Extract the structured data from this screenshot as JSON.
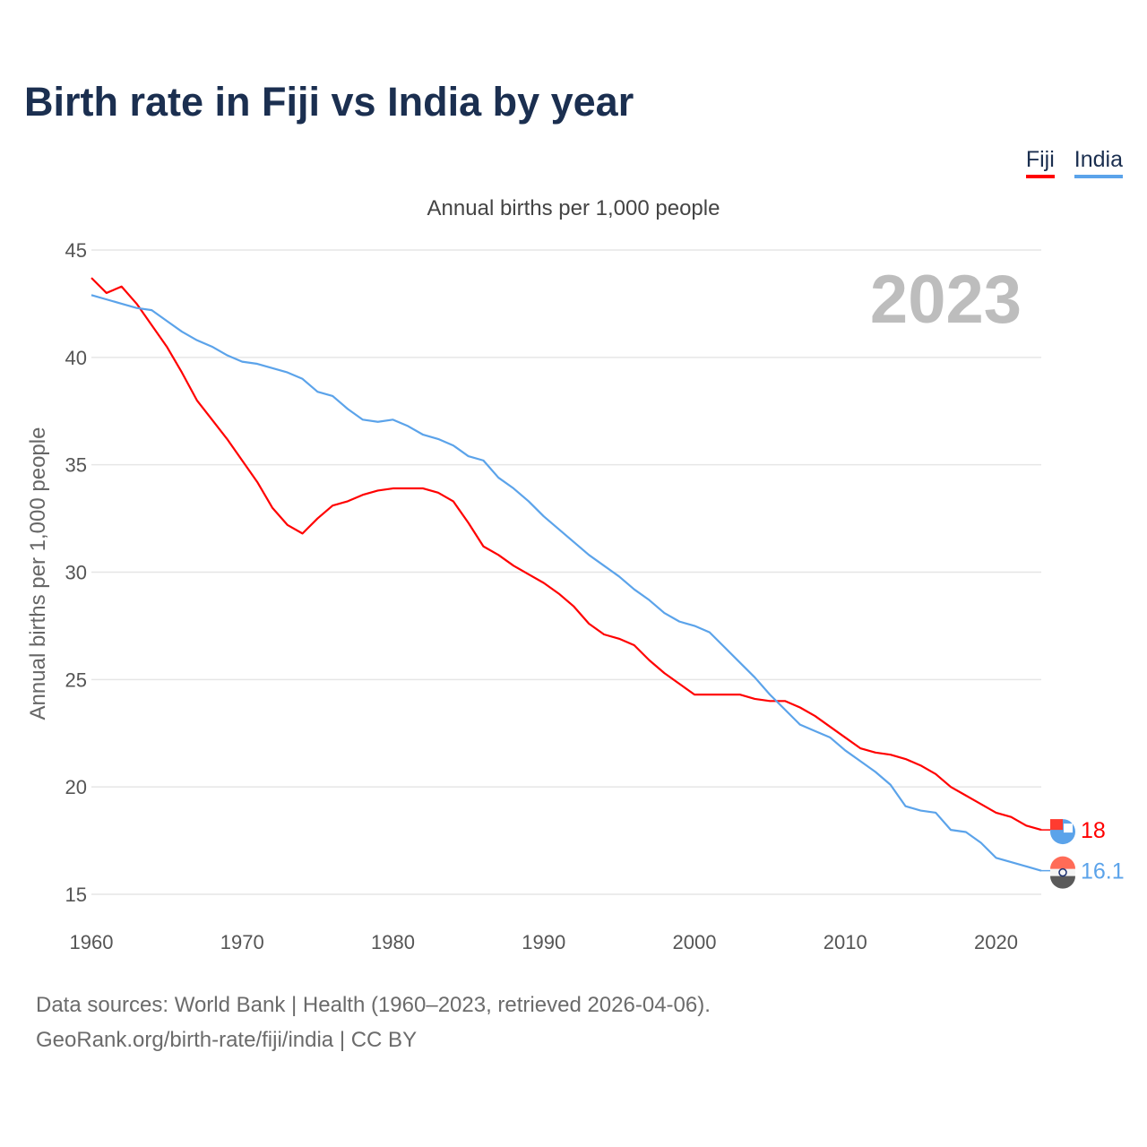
{
  "chart_data": {
    "type": "line",
    "title": "Birth rate in Fiji vs India by year",
    "subtitle": "Annual births per 1,000 people",
    "ylabel": "Annual births per 1,000 people",
    "xlabel": "",
    "year_label": "2023",
    "xlim": [
      1960,
      2023
    ],
    "ylim": [
      15,
      45
    ],
    "xticks": [
      1960,
      1970,
      1980,
      1990,
      2000,
      2010,
      2020
    ],
    "yticks": [
      15,
      20,
      25,
      30,
      35,
      40,
      45
    ],
    "grid": true,
    "legend_position": "top-right",
    "x": [
      1960,
      1961,
      1962,
      1963,
      1964,
      1965,
      1966,
      1967,
      1968,
      1969,
      1970,
      1971,
      1972,
      1973,
      1974,
      1975,
      1976,
      1977,
      1978,
      1979,
      1980,
      1981,
      1982,
      1983,
      1984,
      1985,
      1986,
      1987,
      1988,
      1989,
      1990,
      1991,
      1992,
      1993,
      1994,
      1995,
      1996,
      1997,
      1998,
      1999,
      2000,
      2001,
      2002,
      2003,
      2004,
      2005,
      2006,
      2007,
      2008,
      2009,
      2010,
      2011,
      2012,
      2013,
      2014,
      2015,
      2016,
      2017,
      2018,
      2019,
      2020,
      2021,
      2022,
      2023
    ],
    "series": [
      {
        "name": "Fiji",
        "color": "#ff0000",
        "end_label": "18",
        "values": [
          43.7,
          43.0,
          43.3,
          42.5,
          41.5,
          40.5,
          39.3,
          38.0,
          37.1,
          36.2,
          35.2,
          34.2,
          33.0,
          32.2,
          31.8,
          32.5,
          33.1,
          33.3,
          33.6,
          33.8,
          33.9,
          33.9,
          33.9,
          33.7,
          33.3,
          32.3,
          31.2,
          30.8,
          30.3,
          29.9,
          29.5,
          29.0,
          28.4,
          27.6,
          27.1,
          26.9,
          26.6,
          25.9,
          25.3,
          24.8,
          24.3,
          24.3,
          24.3,
          24.3,
          24.1,
          24.0,
          24.0,
          23.7,
          23.3,
          22.8,
          22.3,
          21.8,
          21.6,
          21.5,
          21.3,
          21.0,
          20.6,
          20.0,
          19.6,
          19.2,
          18.8,
          18.6,
          18.2,
          18.0
        ]
      },
      {
        "name": "India",
        "color": "#5ba3ea",
        "end_label": "16.1",
        "values": [
          42.9,
          42.7,
          42.5,
          42.3,
          42.2,
          41.7,
          41.2,
          40.8,
          40.5,
          40.1,
          39.8,
          39.7,
          39.5,
          39.3,
          39.0,
          38.4,
          38.2,
          37.6,
          37.1,
          37.0,
          37.1,
          36.8,
          36.4,
          36.2,
          35.9,
          35.4,
          35.2,
          34.4,
          33.9,
          33.3,
          32.6,
          32.0,
          31.4,
          30.8,
          30.3,
          29.8,
          29.2,
          28.7,
          28.1,
          27.7,
          27.5,
          27.2,
          26.5,
          25.8,
          25.1,
          24.3,
          23.6,
          22.9,
          22.6,
          22.3,
          21.7,
          21.2,
          20.7,
          20.1,
          19.1,
          18.9,
          18.8,
          18.0,
          17.9,
          17.4,
          16.7,
          16.5,
          16.3,
          16.1
        ]
      }
    ]
  },
  "footer": {
    "line1": "Data sources: World Bank | Health (1960–2023, retrieved 2026-04-06).",
    "line2": "GeoRank.org/birth-rate/fiji/india | CC BY"
  }
}
